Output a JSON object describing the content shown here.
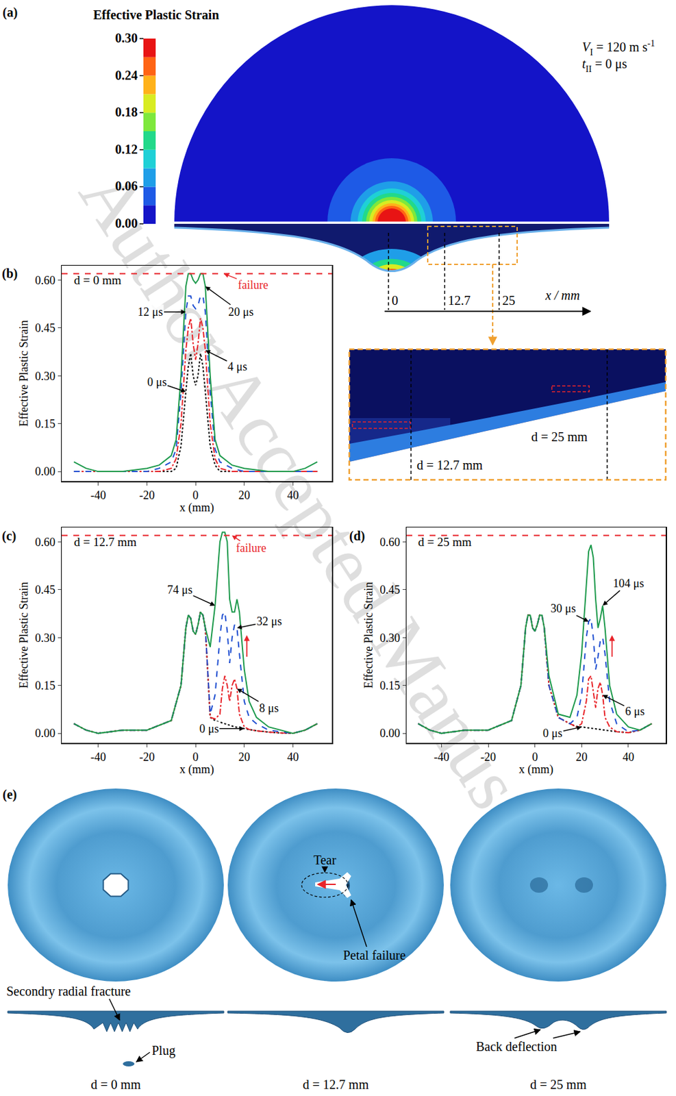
{
  "watermark": "Author Accepted Manuscript",
  "panel_a": {
    "letter": "(a)",
    "colorbar": {
      "title": "Effective Plastic Strain",
      "range": [
        0,
        0.3
      ],
      "ticks": [
        {
          "value": 0,
          "label": "0.00"
        },
        {
          "value": 0.06,
          "label": "0.06"
        },
        {
          "value": 0.12,
          "label": "0.12"
        },
        {
          "value": 0.18,
          "label": "0.18"
        },
        {
          "value": 0.24,
          "label": "0.24"
        },
        {
          "value": 0.3,
          "label": "0.30"
        }
      ],
      "colors": [
        "#1414c8",
        "#1e5ae6",
        "#1f9ee8",
        "#1fd0d6",
        "#22d98a",
        "#7ee83c",
        "#d8ec22",
        "#ffb21a",
        "#ff6414",
        "#e81414"
      ]
    },
    "conditions": [
      [
        {
          "text": "V",
          "style": "italic"
        },
        {
          "text": "I",
          "style": "sub"
        },
        {
          "text": " = 120 m s"
        },
        {
          "text": "-1",
          "style": "sup"
        }
      ],
      [
        {
          "text": "t",
          "style": "italic"
        },
        {
          "text": "II",
          "style": "sub"
        },
        {
          "text": " = 0 μs"
        }
      ]
    ],
    "section_axis": {
      "label": "x / mm",
      "ticks": [
        0,
        12.7,
        25
      ]
    },
    "inset_labels": [
      "d = 12.7 mm",
      "d = 25 mm"
    ]
  },
  "chart_data": [
    {
      "panel": "(b)",
      "type": "line",
      "title": "d = 0 mm",
      "xlabel": "x (mm)",
      "ylabel": "Effective Plastic Strain",
      "xlim": [
        -55,
        56
      ],
      "xticks": [
        -40,
        -20,
        0,
        20,
        40
      ],
      "ylim": [
        -0.03,
        0.645
      ],
      "yticks": [
        {
          "value": 0,
          "label": "0.00"
        },
        {
          "value": 0.15,
          "label": "0.15"
        },
        {
          "value": 0.3,
          "label": "0.30"
        },
        {
          "value": 0.45,
          "label": "0.45"
        },
        {
          "value": 0.6,
          "label": "0.60"
        }
      ],
      "grid": false,
      "x": [
        -50,
        -45,
        -40,
        -30,
        -20,
        -15,
        -10,
        -8,
        -6,
        -4,
        -3,
        -2,
        -1,
        0,
        1,
        2,
        3,
        4,
        6,
        8,
        10,
        15,
        20,
        30,
        40,
        45,
        50
      ],
      "series": [
        {
          "name": "0 μs",
          "color": "#000000",
          "line_style": "dot",
          "values": [
            0,
            0,
            0,
            0,
            0,
            0,
            0,
            0.01,
            0.08,
            0.25,
            0.33,
            0.37,
            0.3,
            0.27,
            0.3,
            0.37,
            0.33,
            0.25,
            0.08,
            0.02,
            0,
            0,
            0,
            0,
            0,
            0,
            0
          ]
        },
        {
          "name": "4 μs",
          "color": "#e8242a",
          "line_style": "dashdot",
          "values": [
            0,
            0,
            0,
            0,
            0,
            0,
            0.01,
            0.04,
            0.15,
            0.38,
            0.45,
            0.48,
            0.4,
            0.35,
            0.4,
            0.48,
            0.45,
            0.38,
            0.15,
            0.04,
            0.01,
            0,
            0,
            0,
            0,
            0,
            0
          ]
        },
        {
          "name": "12 μs",
          "color": "#1f4fd1",
          "line_style": "dash",
          "values": [
            0,
            0,
            0,
            0,
            0,
            0.01,
            0.03,
            0.07,
            0.25,
            0.5,
            0.55,
            0.55,
            0.52,
            0.51,
            0.52,
            0.55,
            0.55,
            0.5,
            0.25,
            0.07,
            0.03,
            0.01,
            0,
            0,
            0,
            0,
            0
          ]
        },
        {
          "name": "20 μs",
          "color": "#1d9a4c",
          "line_style": "solid",
          "values": [
            0.03,
            0.01,
            0,
            0,
            0.01,
            0.02,
            0.05,
            0.1,
            0.3,
            0.58,
            0.62,
            0.62,
            0.6,
            0.59,
            0.6,
            0.62,
            0.62,
            0.58,
            0.3,
            0.1,
            0.05,
            0.02,
            0.01,
            0,
            0,
            0.01,
            0.03
          ]
        }
      ],
      "failure": {
        "label": "failure",
        "value": 0.62,
        "color": "#e8242a",
        "line_style": "dash"
      }
    },
    {
      "panel": "(c)",
      "type": "line",
      "title": "d = 12.7 mm",
      "xlabel": "x (mm)",
      "ylabel": "Effective Plastic Strain",
      "xlim": [
        -55,
        56
      ],
      "xticks": [
        -40,
        -20,
        0,
        20,
        40
      ],
      "ylim": [
        -0.03,
        0.645
      ],
      "yticks": [
        {
          "value": 0,
          "label": "0.00"
        },
        {
          "value": 0.15,
          "label": "0.15"
        },
        {
          "value": 0.3,
          "label": "0.30"
        },
        {
          "value": 0.45,
          "label": "0.45"
        },
        {
          "value": 0.6,
          "label": "0.60"
        }
      ],
      "grid": false,
      "x": [
        -50,
        -45,
        -40,
        -30,
        -20,
        -10,
        -6,
        -4,
        -3,
        -2,
        -1,
        0,
        1,
        2,
        3,
        4,
        6,
        8,
        10,
        11,
        12,
        13,
        14,
        15,
        16,
        17,
        18,
        20,
        22,
        25,
        30,
        35,
        40,
        45,
        50
      ],
      "series": [
        {
          "name": "0 μs",
          "color": "#000000",
          "line_style": "dot",
          "values": [
            0.03,
            0.01,
            0,
            0.01,
            0.01,
            0.04,
            0.15,
            0.33,
            0.37,
            0.36,
            0.32,
            0.31,
            0.34,
            0.38,
            0.37,
            0.33,
            0.05,
            0.04,
            0.035,
            0.032,
            0.03,
            0.028,
            0.025,
            0.022,
            0.02,
            0.019,
            0.018,
            0.015,
            0.012,
            0.008,
            0.004,
            0.001,
            0,
            0.01,
            0.03
          ]
        },
        {
          "name": "8 μs",
          "color": "#e8242a",
          "line_style": "dashdot",
          "values": [
            0.03,
            0.01,
            0,
            0.01,
            0.01,
            0.04,
            0.15,
            0.33,
            0.37,
            0.36,
            0.32,
            0.31,
            0.34,
            0.38,
            0.37,
            0.33,
            0.05,
            0.045,
            0.06,
            0.14,
            0.18,
            0.15,
            0.1,
            0.15,
            0.17,
            0.14,
            0.06,
            0.02,
            0.012,
            0.008,
            0.004,
            0.001,
            0,
            0.01,
            0.03
          ]
        },
        {
          "name": "32 μs",
          "color": "#1f4fd1",
          "line_style": "dash",
          "values": [
            0.03,
            0.01,
            0,
            0.01,
            0.01,
            0.04,
            0.15,
            0.33,
            0.37,
            0.36,
            0.32,
            0.31,
            0.34,
            0.38,
            0.37,
            0.33,
            0.06,
            0.12,
            0.3,
            0.37,
            0.38,
            0.32,
            0.22,
            0.3,
            0.34,
            0.33,
            0.25,
            0.1,
            0.05,
            0.03,
            0.01,
            0.005,
            0,
            0.01,
            0.03
          ]
        },
        {
          "name": "74 μs",
          "color": "#1d9a4c",
          "line_style": "solid",
          "values": [
            0.03,
            0.01,
            0,
            0.01,
            0.01,
            0.04,
            0.15,
            0.33,
            0.37,
            0.36,
            0.32,
            0.31,
            0.34,
            0.38,
            0.37,
            0.33,
            0.27,
            0.4,
            0.6,
            0.63,
            0.63,
            0.6,
            0.42,
            0.38,
            0.38,
            0.42,
            0.38,
            0.2,
            0.1,
            0.05,
            0.02,
            0.01,
            0,
            0.01,
            0.03
          ]
        }
      ],
      "failure": {
        "label": "failure",
        "value": 0.62,
        "color": "#e8242a",
        "line_style": "dash"
      }
    },
    {
      "panel": "(d)",
      "type": "line",
      "title": "d = 25 mm",
      "xlabel": "x (mm)",
      "ylabel": "Effective Plastic Strain",
      "xlim": [
        -55,
        56
      ],
      "xticks": [
        -40,
        -20,
        0,
        20,
        40
      ],
      "ylim": [
        -0.03,
        0.645
      ],
      "yticks": [
        {
          "value": 0,
          "label": "0.00"
        },
        {
          "value": 0.15,
          "label": "0.15"
        },
        {
          "value": 0.3,
          "label": "0.30"
        },
        {
          "value": 0.45,
          "label": "0.45"
        },
        {
          "value": 0.6,
          "label": "0.60"
        }
      ],
      "grid": false,
      "x": [
        -50,
        -45,
        -40,
        -30,
        -20,
        -10,
        -6,
        -4,
        -3,
        -2,
        -1,
        0,
        1,
        2,
        3,
        4,
        6,
        10,
        15,
        18,
        20,
        22,
        23,
        24,
        25,
        26,
        27,
        28,
        29,
        30,
        32,
        35,
        40,
        45,
        50
      ],
      "series": [
        {
          "name": "0 μs",
          "color": "#000000",
          "line_style": "dot",
          "values": [
            0.03,
            0.01,
            0,
            0.01,
            0.01,
            0.04,
            0.15,
            0.33,
            0.37,
            0.37,
            0.33,
            0.32,
            0.34,
            0.37,
            0.37,
            0.33,
            0.15,
            0.05,
            0.03,
            0.02,
            0.02,
            0.018,
            0.017,
            0.016,
            0.015,
            0.014,
            0.013,
            0.012,
            0.011,
            0.01,
            0.008,
            0.005,
            0.002,
            0.01,
            0.03
          ]
        },
        {
          "name": "6 μs",
          "color": "#e8242a",
          "line_style": "dashdot",
          "values": [
            0.03,
            0.01,
            0,
            0.01,
            0.01,
            0.04,
            0.15,
            0.33,
            0.37,
            0.37,
            0.33,
            0.32,
            0.34,
            0.37,
            0.37,
            0.33,
            0.15,
            0.05,
            0.03,
            0.02,
            0.03,
            0.1,
            0.17,
            0.18,
            0.13,
            0.08,
            0.14,
            0.16,
            0.12,
            0.05,
            0.02,
            0.005,
            0.002,
            0.01,
            0.03
          ]
        },
        {
          "name": "30 μs",
          "color": "#1f4fd1",
          "line_style": "dash",
          "values": [
            0.03,
            0.01,
            0,
            0.01,
            0.01,
            0.04,
            0.15,
            0.33,
            0.37,
            0.37,
            0.33,
            0.32,
            0.34,
            0.37,
            0.37,
            0.33,
            0.15,
            0.05,
            0.03,
            0.05,
            0.12,
            0.3,
            0.35,
            0.36,
            0.3,
            0.2,
            0.24,
            0.29,
            0.3,
            0.25,
            0.1,
            0.03,
            0.005,
            0.01,
            0.03
          ]
        },
        {
          "name": "104 μs",
          "color": "#1d9a4c",
          "line_style": "solid",
          "values": [
            0.03,
            0.01,
            0,
            0.01,
            0.01,
            0.04,
            0.15,
            0.33,
            0.37,
            0.37,
            0.33,
            0.32,
            0.34,
            0.37,
            0.37,
            0.33,
            0.18,
            0.06,
            0.05,
            0.12,
            0.25,
            0.45,
            0.57,
            0.59,
            0.55,
            0.42,
            0.33,
            0.36,
            0.4,
            0.33,
            0.15,
            0.06,
            0.02,
            0.01,
            0.03
          ]
        }
      ],
      "failure": {
        "value": 0.62,
        "color": "#e8242a",
        "line_style": "dash"
      }
    }
  ],
  "panel_e": {
    "letter": "(e)",
    "cases": [
      {
        "label": "d = 0 mm",
        "callouts": [
          "Secondry radial fracture",
          "Plug"
        ]
      },
      {
        "label": "d = 12.7 mm",
        "callouts": [
          "Tear",
          "Petal failure"
        ]
      },
      {
        "label": "d = 25 mm",
        "callouts": [
          "Back deflection"
        ]
      }
    ]
  }
}
